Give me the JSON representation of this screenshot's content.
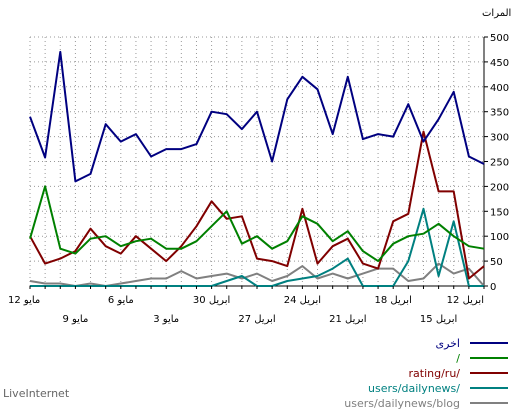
{
  "chart_data": {
    "type": "line",
    "unit_label": "المرات",
    "ylim": [
      0,
      500
    ],
    "y_ticks": [
      0,
      50,
      100,
      150,
      200,
      250,
      300,
      350,
      400,
      450,
      500
    ],
    "x_ticks_top": [
      "12 مايو",
      "6 مايو",
      "30 ابريل",
      "24 ابريل",
      "18 ابريل",
      "12 ابريل"
    ],
    "x_ticks_bottom": [
      "9 مايو",
      "3 مايو",
      "27 ابريل",
      "21 ابريل",
      "15 ابريل"
    ],
    "grid": true,
    "legend_position": "bottom-right",
    "series": [
      {
        "name": "اخرى",
        "color": "#000080",
        "values": [
          340,
          258,
          470,
          210,
          225,
          325,
          290,
          305,
          260,
          275,
          275,
          285,
          350,
          345,
          315,
          350,
          250,
          375,
          420,
          395,
          305,
          420,
          295,
          305,
          300,
          365,
          290,
          335,
          390,
          260,
          245
        ]
      },
      {
        "name": "/",
        "color": "#008000",
        "values": [
          95,
          200,
          75,
          65,
          95,
          100,
          80,
          90,
          95,
          75,
          75,
          90,
          120,
          150,
          85,
          100,
          75,
          90,
          140,
          125,
          90,
          110,
          70,
          50,
          85,
          100,
          105,
          125,
          100,
          80,
          75
        ]
      },
      {
        "name": "rating/ru/",
        "color": "#800000",
        "values": [
          100,
          45,
          55,
          70,
          115,
          80,
          65,
          100,
          75,
          50,
          80,
          120,
          170,
          135,
          140,
          55,
          50,
          40,
          155,
          45,
          80,
          95,
          45,
          35,
          130,
          145,
          310,
          190,
          190,
          15,
          40
        ]
      },
      {
        "name": "users/dailynews/",
        "color": "#008080",
        "values": [
          0,
          0,
          0,
          0,
          0,
          0,
          0,
          0,
          0,
          0,
          0,
          0,
          0,
          10,
          20,
          0,
          0,
          10,
          15,
          20,
          35,
          55,
          0,
          0,
          0,
          50,
          155,
          20,
          130,
          0,
          0
        ]
      },
      {
        "name": "users/dailynews/blog",
        "color": "#808080",
        "values": [
          10,
          5,
          5,
          0,
          5,
          0,
          5,
          10,
          15,
          15,
          30,
          15,
          20,
          25,
          15,
          25,
          10,
          20,
          40,
          15,
          25,
          15,
          25,
          35,
          35,
          10,
          15,
          45,
          25,
          35,
          0
        ]
      }
    ]
  },
  "brand": "LiveInternet"
}
